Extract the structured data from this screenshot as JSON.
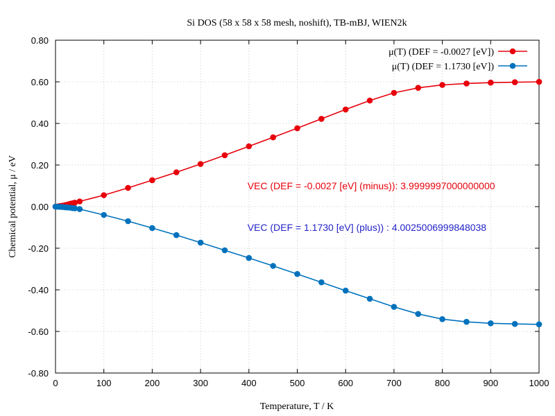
{
  "chart_data": {
    "type": "line",
    "title": "Si DOS (58 x 58 x 58 mesh, noshift), TB-mBJ, WIEN2k",
    "xlabel": "Temperature, T / K",
    "ylabel": "Chemical potential, μ / eV",
    "xlim": [
      0,
      1000
    ],
    "ylim": [
      -0.8,
      0.8
    ],
    "x_ticks": [
      0,
      100,
      200,
      300,
      400,
      500,
      600,
      700,
      800,
      900,
      1000
    ],
    "y_ticks": [
      -0.8,
      -0.6,
      -0.4,
      -0.2,
      0.0,
      0.2,
      0.4,
      0.6,
      0.8
    ],
    "y_tick_labels": [
      "-0.80",
      "-0.60",
      "-0.40",
      "-0.20",
      "0.00",
      "0.20",
      "0.40",
      "0.60",
      "0.80"
    ],
    "grid": true,
    "legend_position": "top-right",
    "x": [
      0,
      5,
      10,
      15,
      20,
      25,
      30,
      35,
      40,
      50,
      100,
      150,
      200,
      250,
      300,
      350,
      400,
      450,
      500,
      550,
      600,
      650,
      700,
      750,
      800,
      850,
      900,
      950,
      1000
    ],
    "series": [
      {
        "name": "μ(T) (DEF = -0.0027 [eV])",
        "color": "#e8000b",
        "values": [
          0.0,
          0.001,
          0.003,
          0.005,
          0.007,
          0.01,
          0.013,
          0.016,
          0.019,
          0.025,
          0.055,
          0.09,
          0.127,
          0.165,
          0.205,
          0.247,
          0.29,
          0.333,
          0.377,
          0.422,
          0.467,
          0.51,
          0.547,
          0.571,
          0.585,
          0.592,
          0.596,
          0.598,
          0.6
        ]
      },
      {
        "name": "μ(T) (DEF =  1.1730 [eV])",
        "color": "#0072bd",
        "values": [
          0.0,
          -0.0005,
          -0.001,
          -0.002,
          -0.003,
          -0.004,
          -0.005,
          -0.007,
          -0.008,
          -0.012,
          -0.04,
          -0.07,
          -0.103,
          -0.137,
          -0.173,
          -0.21,
          -0.247,
          -0.285,
          -0.324,
          -0.364,
          -0.404,
          -0.443,
          -0.482,
          -0.516,
          -0.541,
          -0.554,
          -0.561,
          -0.564,
          -0.566
        ]
      }
    ],
    "annotations": [
      {
        "text": "VEC (DEF = -0.0027 [eV] (minus)): 3.9999997000000000",
        "color": "#e8000b",
        "x": 397,
        "y": 0.1
      },
      {
        "text": "VEC (DEF =  1.1730 [eV] (plus)) : 4.0025006999848038",
        "color": "#2323c8",
        "x": 397,
        "y": -0.1
      }
    ]
  }
}
